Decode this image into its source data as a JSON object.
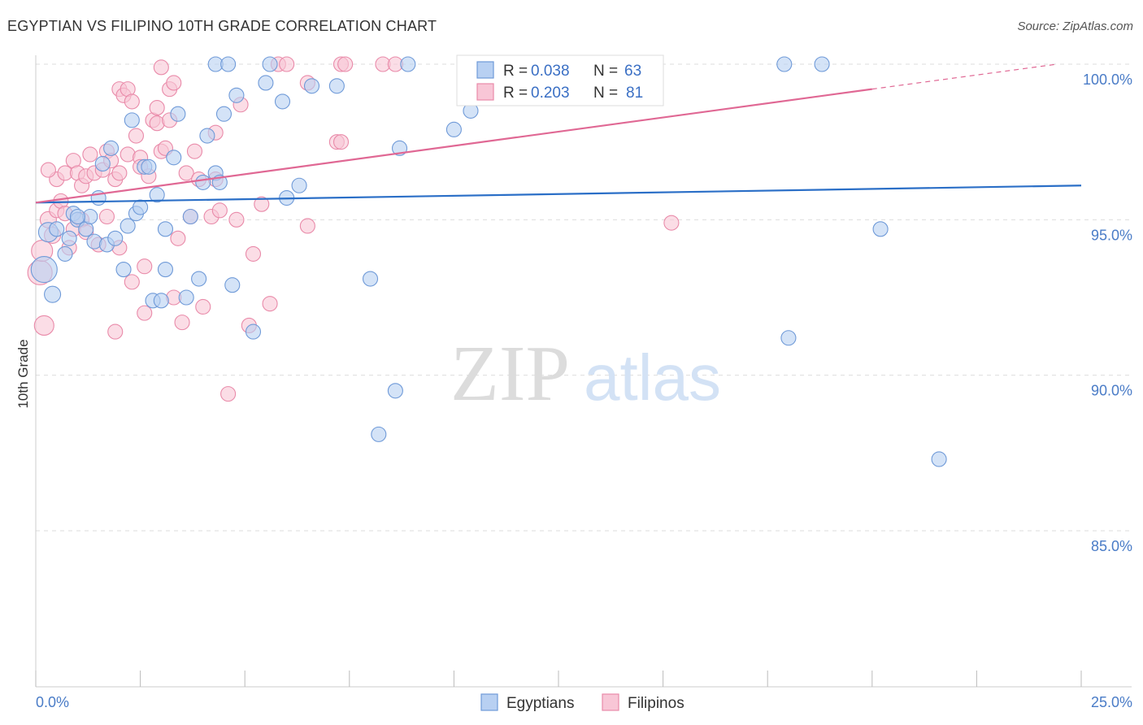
{
  "title": "EGYPTIAN VS FILIPINO 10TH GRADE CORRELATION CHART",
  "source": "Source: ZipAtlas.com",
  "watermark": {
    "zip": "ZIP",
    "atlas": "atlas"
  },
  "colors": {
    "blue_fill": "#b8d0f2",
    "blue_stroke": "#6f9ad8",
    "blue_line": "#2b6fc7",
    "pink_fill": "#f8c6d6",
    "pink_stroke": "#e98aa9",
    "pink_line": "#e06894",
    "grid": "#dddddd",
    "axis_label": "#4a7cc7"
  },
  "chart_data": {
    "type": "scatter",
    "title": "EGYPTIAN VS FILIPINO 10TH GRADE CORRELATION CHART",
    "xlabel": "",
    "ylabel": "10th Grade",
    "xlim": [
      0,
      25
    ],
    "ylim": [
      80,
      100.5
    ],
    "x_tick_labels": [
      "0.0%",
      "25.0%"
    ],
    "y_ticks": [
      85,
      90,
      95,
      100
    ],
    "y_tick_labels": [
      "85.0%",
      "90.0%",
      "95.0%",
      "100.0%"
    ],
    "grid": true,
    "legend": {
      "position": "top-center",
      "entries": [
        {
          "name": "Egyptians",
          "r_label": "R =",
          "r": "0.038",
          "n_label": "N =",
          "n": "63"
        },
        {
          "name": "Filipinos",
          "r_label": "R =",
          "r": "0.203",
          "n_label": "N =",
          "n": "81"
        }
      ]
    },
    "series": [
      {
        "name": "Egyptians",
        "trend": {
          "x": [
            0,
            25
          ],
          "y": [
            95.55,
            96.1
          ]
        },
        "points": [
          [
            0.2,
            93.4,
            16
          ],
          [
            0.3,
            94.6,
            12
          ],
          [
            0.4,
            92.6,
            10
          ],
          [
            0.5,
            94.7,
            9
          ],
          [
            0.7,
            93.9,
            9
          ],
          [
            0.9,
            95.2,
            9
          ],
          [
            1.0,
            95.0,
            9
          ],
          [
            1.2,
            94.7,
            9
          ],
          [
            1.3,
            95.1,
            9
          ],
          [
            1.4,
            94.3,
            9
          ],
          [
            1.5,
            95.7,
            9
          ],
          [
            1.6,
            96.8,
            9
          ],
          [
            1.7,
            94.2,
            9
          ],
          [
            1.8,
            97.3,
            9
          ],
          [
            1.9,
            94.4,
            9
          ],
          [
            2.1,
            93.4,
            9
          ],
          [
            2.2,
            94.8,
            9
          ],
          [
            2.3,
            98.2,
            9
          ],
          [
            2.4,
            95.2,
            9
          ],
          [
            2.5,
            95.4,
            9
          ],
          [
            2.6,
            96.7,
            9
          ],
          [
            2.7,
            96.7,
            9
          ],
          [
            2.8,
            92.4,
            9
          ],
          [
            2.9,
            95.8,
            9
          ],
          [
            3.1,
            94.7,
            9
          ],
          [
            3.1,
            93.4,
            9
          ],
          [
            3.3,
            97.0,
            9
          ],
          [
            3.4,
            98.4,
            9
          ],
          [
            3.6,
            92.5,
            9
          ],
          [
            3.7,
            95.1,
            9
          ],
          [
            3.9,
            93.1,
            9
          ],
          [
            4.0,
            96.2,
            9
          ],
          [
            4.1,
            97.7,
            9
          ],
          [
            4.3,
            96.5,
            9
          ],
          [
            4.3,
            100.0,
            9
          ],
          [
            4.5,
            98.4,
            9
          ],
          [
            4.6,
            100.0,
            9
          ],
          [
            4.7,
            92.9,
            9
          ],
          [
            4.8,
            99.0,
            9
          ],
          [
            5.2,
            91.4,
            9
          ],
          [
            5.5,
            99.4,
            9
          ],
          [
            5.6,
            100.0,
            9
          ],
          [
            5.9,
            98.8,
            9
          ],
          [
            6.0,
            95.7,
            9
          ],
          [
            6.3,
            96.1,
            9
          ],
          [
            6.6,
            99.3,
            9
          ],
          [
            7.2,
            99.3,
            9
          ],
          [
            8.0,
            93.1,
            9
          ],
          [
            8.2,
            88.1,
            9
          ],
          [
            8.6,
            89.5,
            9
          ],
          [
            8.7,
            97.3,
            9
          ],
          [
            8.9,
            100.0,
            9
          ],
          [
            10.0,
            97.9,
            9
          ],
          [
            10.4,
            98.5,
            9
          ],
          [
            17.9,
            100.0,
            9
          ],
          [
            18.0,
            91.2,
            9
          ],
          [
            18.8,
            100.0,
            9
          ],
          [
            20.2,
            94.7,
            9
          ],
          [
            21.6,
            87.3,
            9
          ],
          [
            3.0,
            92.4,
            9
          ],
          [
            4.4,
            96.2,
            9
          ],
          [
            1.0,
            95.1,
            9
          ],
          [
            0.8,
            94.4,
            9
          ]
        ]
      },
      {
        "name": "Filipinos",
        "trend": {
          "x": [
            0,
            20
          ],
          "y": [
            95.55,
            99.2
          ]
        },
        "trend_dashed": {
          "x": [
            20,
            25
          ],
          "y": [
            99.2,
            100.0
          ]
        },
        "points": [
          [
            0.1,
            93.3,
            15
          ],
          [
            0.15,
            94.0,
            13
          ],
          [
            0.2,
            91.6,
            12
          ],
          [
            0.3,
            95.0,
            10
          ],
          [
            0.4,
            94.5,
            10
          ],
          [
            0.5,
            96.3,
            9
          ],
          [
            0.5,
            95.3,
            9
          ],
          [
            0.6,
            95.6,
            9
          ],
          [
            0.7,
            95.2,
            9
          ],
          [
            0.7,
            96.5,
            9
          ],
          [
            0.8,
            94.1,
            9
          ],
          [
            0.9,
            96.9,
            9
          ],
          [
            0.9,
            94.7,
            9
          ],
          [
            1.0,
            96.5,
            9
          ],
          [
            1.1,
            95.0,
            9
          ],
          [
            1.1,
            96.1,
            9
          ],
          [
            1.2,
            96.4,
            9
          ],
          [
            1.3,
            97.1,
            9
          ],
          [
            1.4,
            96.5,
            9
          ],
          [
            1.5,
            94.2,
            9
          ],
          [
            1.6,
            96.6,
            9
          ],
          [
            1.7,
            97.2,
            9
          ],
          [
            1.7,
            95.1,
            9
          ],
          [
            1.8,
            96.9,
            9
          ],
          [
            1.9,
            96.3,
            9
          ],
          [
            1.9,
            91.4,
            9
          ],
          [
            2.0,
            96.5,
            9
          ],
          [
            2.0,
            99.2,
            9
          ],
          [
            2.1,
            99.0,
            9
          ],
          [
            2.2,
            99.2,
            9
          ],
          [
            2.2,
            97.1,
            9
          ],
          [
            2.3,
            98.8,
            9
          ],
          [
            2.3,
            93.0,
            9
          ],
          [
            2.4,
            97.7,
            9
          ],
          [
            2.5,
            97.0,
            9
          ],
          [
            2.5,
            96.7,
            9
          ],
          [
            2.6,
            93.5,
            9
          ],
          [
            2.6,
            92.0,
            9
          ],
          [
            2.7,
            96.4,
            9
          ],
          [
            2.8,
            98.2,
            9
          ],
          [
            2.9,
            98.1,
            9
          ],
          [
            2.9,
            98.6,
            9
          ],
          [
            3.0,
            97.2,
            9
          ],
          [
            3.0,
            99.9,
            9
          ],
          [
            3.1,
            97.3,
            9
          ],
          [
            3.2,
            98.2,
            9
          ],
          [
            3.2,
            99.2,
            9
          ],
          [
            3.3,
            99.4,
            9
          ],
          [
            3.3,
            92.5,
            9
          ],
          [
            3.4,
            94.4,
            9
          ],
          [
            3.5,
            91.7,
            9
          ],
          [
            3.6,
            96.5,
            9
          ],
          [
            3.7,
            95.1,
            9
          ],
          [
            3.8,
            97.2,
            9
          ],
          [
            4.0,
            92.2,
            9
          ],
          [
            4.2,
            95.1,
            9
          ],
          [
            4.3,
            97.8,
            9
          ],
          [
            4.3,
            96.3,
            9
          ],
          [
            4.4,
            95.3,
            9
          ],
          [
            4.6,
            89.4,
            9
          ],
          [
            4.9,
            98.7,
            9
          ],
          [
            5.1,
            91.6,
            9
          ],
          [
            5.2,
            93.9,
            9
          ],
          [
            5.4,
            95.5,
            9
          ],
          [
            5.6,
            92.3,
            9
          ],
          [
            5.8,
            100.0,
            9
          ],
          [
            6.0,
            100.0,
            9
          ],
          [
            6.5,
            94.8,
            9
          ],
          [
            6.5,
            99.4,
            9
          ],
          [
            7.2,
            97.5,
            9
          ],
          [
            7.3,
            97.5,
            9
          ],
          [
            7.3,
            100.0,
            9
          ],
          [
            7.4,
            100.0,
            9
          ],
          [
            8.3,
            100.0,
            9
          ],
          [
            8.6,
            100.0,
            9
          ],
          [
            15.2,
            94.9,
            9
          ],
          [
            3.9,
            96.3,
            9
          ],
          [
            2.0,
            94.1,
            9
          ],
          [
            1.2,
            94.6,
            9
          ],
          [
            0.3,
            96.6,
            9
          ],
          [
            4.8,
            95.0,
            9
          ]
        ]
      }
    ]
  }
}
